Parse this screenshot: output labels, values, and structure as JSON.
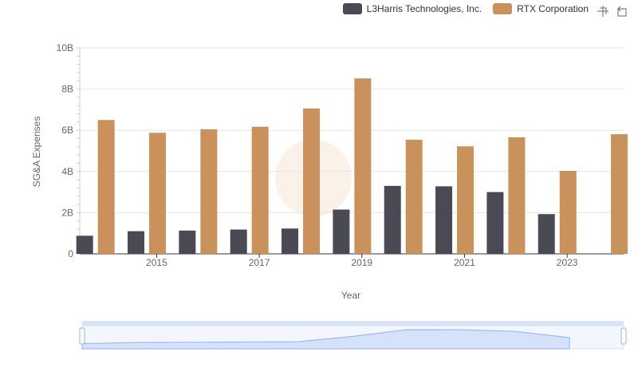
{
  "chart_data": {
    "type": "bar",
    "xlabel": "Year",
    "ylabel": "SG&A Expenses",
    "x_ticks": [
      "2015",
      "2017",
      "2019",
      "2021",
      "2023"
    ],
    "y_ticks": [
      "0",
      "2B",
      "4B",
      "6B",
      "8B",
      "10B"
    ],
    "ylim": [
      0,
      10000000000
    ],
    "categories": [
      "2014",
      "2015",
      "2016",
      "2017",
      "2018",
      "2019",
      "2020",
      "2021",
      "2022",
      "2023",
      "2024"
    ],
    "series": [
      {
        "name": "L3Harris Technologies, Inc.",
        "color": "#4a4a55",
        "values": [
          880000000,
          1100000000,
          1130000000,
          1180000000,
          1230000000,
          2150000000,
          3300000000,
          3280000000,
          3000000000,
          1930000000,
          null
        ]
      },
      {
        "name": "RTX Corporation",
        "color": "#c9915c",
        "values": [
          6500000000,
          5880000000,
          6050000000,
          6170000000,
          7060000000,
          8520000000,
          5540000000,
          5220000000,
          5660000000,
          4030000000,
          5810000000
        ]
      }
    ],
    "grid": true,
    "legend_position": "top-right"
  },
  "toolbox": {
    "zoom_icon": "zoom-icon",
    "restore_icon": "restore-icon"
  },
  "slider": {
    "fill_color": "#d6e2fb",
    "line_color": "#8fb0f7"
  }
}
